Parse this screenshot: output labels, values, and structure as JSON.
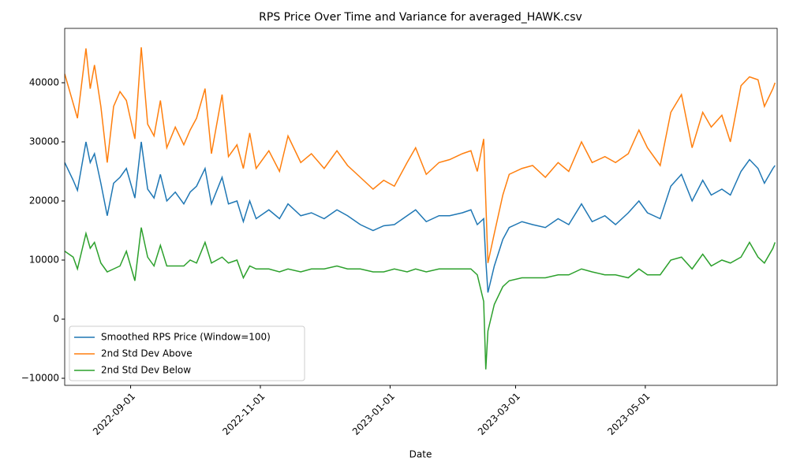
{
  "chart_data": {
    "type": "line",
    "title": "RPS Price Over Time and Variance for averaged_HAWK.csv",
    "xlabel": "Date",
    "x": [
      "2022-08-01",
      "2022-08-05",
      "2022-08-07",
      "2022-08-11",
      "2022-08-13",
      "2022-08-15",
      "2022-08-18",
      "2022-08-21",
      "2022-08-24",
      "2022-08-27",
      "2022-08-30",
      "2022-09-03",
      "2022-09-06",
      "2022-09-09",
      "2022-09-12",
      "2022-09-15",
      "2022-09-18",
      "2022-09-22",
      "2022-09-26",
      "2022-09-29",
      "2022-10-02",
      "2022-10-06",
      "2022-10-09",
      "2022-10-14",
      "2022-10-17",
      "2022-10-21",
      "2022-10-24",
      "2022-10-27",
      "2022-10-30",
      "2022-11-05",
      "2022-11-10",
      "2022-11-14",
      "2022-11-20",
      "2022-11-25",
      "2022-12-01",
      "2022-12-07",
      "2022-12-12",
      "2022-12-18",
      "2022-12-24",
      "2022-12-29",
      "2023-01-03",
      "2023-01-09",
      "2023-01-13",
      "2023-01-18",
      "2023-01-24",
      "2023-01-29",
      "2023-02-04",
      "2023-02-08",
      "2023-02-11",
      "2023-02-14",
      "2023-02-15",
      "2023-02-16",
      "2023-02-19",
      "2023-02-23",
      "2023-02-26",
      "2023-03-04",
      "2023-03-09",
      "2023-03-15",
      "2023-03-21",
      "2023-03-26",
      "2023-04-01",
      "2023-04-06",
      "2023-04-12",
      "2023-04-17",
      "2023-04-23",
      "2023-04-28",
      "2023-05-02",
      "2023-05-08",
      "2023-05-13",
      "2023-05-18",
      "2023-05-23",
      "2023-05-28",
      "2023-06-01",
      "2023-06-06",
      "2023-06-10",
      "2023-06-15",
      "2023-06-19",
      "2023-06-23",
      "2023-06-26",
      "2023-06-30",
      "2023-07-01"
    ],
    "series": [
      {
        "name": "Smoothed RPS Price (Window=100)",
        "color": "#1f77b4",
        "values": [
          26500,
          23500,
          21800,
          30000,
          26500,
          28000,
          23000,
          17500,
          23000,
          24000,
          25500,
          20500,
          30000,
          22000,
          20500,
          24500,
          20000,
          21500,
          19500,
          21500,
          22500,
          25500,
          19500,
          24000,
          19500,
          20000,
          16500,
          20000,
          17000,
          18500,
          17000,
          19500,
          17500,
          18000,
          17000,
          18500,
          17500,
          16000,
          15000,
          15800,
          16000,
          17500,
          18500,
          16500,
          17500,
          17500,
          18000,
          18500,
          16000,
          17000,
          10000,
          4500,
          9000,
          13500,
          15500,
          16500,
          16000,
          15500,
          17000,
          16000,
          19500,
          16500,
          17500,
          16000,
          18000,
          20000,
          18000,
          17000,
          22500,
          24500,
          20000,
          23500,
          21000,
          22000,
          21000,
          25000,
          27000,
          25500,
          23000,
          25500,
          26000
        ]
      },
      {
        "name": "2nd Std Dev Above",
        "color": "#ff7f0e",
        "values": [
          41500,
          36500,
          34000,
          45800,
          39000,
          43000,
          36000,
          26500,
          36000,
          38500,
          37000,
          30500,
          46000,
          33000,
          31000,
          37000,
          29000,
          32500,
          29500,
          32000,
          34000,
          39000,
          28000,
          38000,
          27500,
          29500,
          25500,
          31500,
          25500,
          28500,
          25000,
          31000,
          26500,
          28000,
          25500,
          28500,
          26000,
          24000,
          22000,
          23500,
          22500,
          26500,
          29000,
          24500,
          26500,
          27000,
          28000,
          28500,
          25000,
          30500,
          20000,
          9500,
          14500,
          21000,
          24500,
          25500,
          26000,
          24000,
          26500,
          25000,
          30000,
          26500,
          27500,
          26500,
          28000,
          32000,
          29000,
          26000,
          35000,
          38000,
          29000,
          35000,
          32500,
          34500,
          30000,
          39500,
          41000,
          40500,
          36000,
          39000,
          40000
        ]
      },
      {
        "name": "2nd Std Dev Below",
        "color": "#2ca02c",
        "values": [
          11500,
          10500,
          8500,
          14500,
          12000,
          13000,
          9500,
          8000,
          8500,
          9000,
          11500,
          6500,
          15500,
          10500,
          9000,
          12500,
          9000,
          9000,
          9000,
          10000,
          9500,
          13000,
          9500,
          10500,
          9500,
          10000,
          7000,
          9000,
          8500,
          8500,
          8000,
          8500,
          8000,
          8500,
          8500,
          9000,
          8500,
          8500,
          8000,
          8000,
          8500,
          8000,
          8500,
          8000,
          8500,
          8500,
          8500,
          8500,
          7500,
          3000,
          -8500,
          -2000,
          2500,
          5500,
          6500,
          7000,
          7000,
          7000,
          7500,
          7500,
          8500,
          8000,
          7500,
          7500,
          7000,
          8500,
          7500,
          7500,
          10000,
          10500,
          8500,
          11000,
          9000,
          10000,
          9500,
          10500,
          13000,
          10500,
          9500,
          12000,
          13000
        ]
      }
    ],
    "xlim": [
      "2022-08-01",
      "2023-07-02"
    ],
    "xticks": [
      "2022-09-01",
      "2022-11-01",
      "2023-01-01",
      "2023-03-01",
      "2023-05-01"
    ],
    "ylim": [
      -11200,
      49200
    ],
    "yticks": [
      {
        "value": -10000,
        "label": "−10000"
      },
      0,
      10000,
      20000,
      30000,
      40000
    ],
    "legend": "lower left"
  }
}
